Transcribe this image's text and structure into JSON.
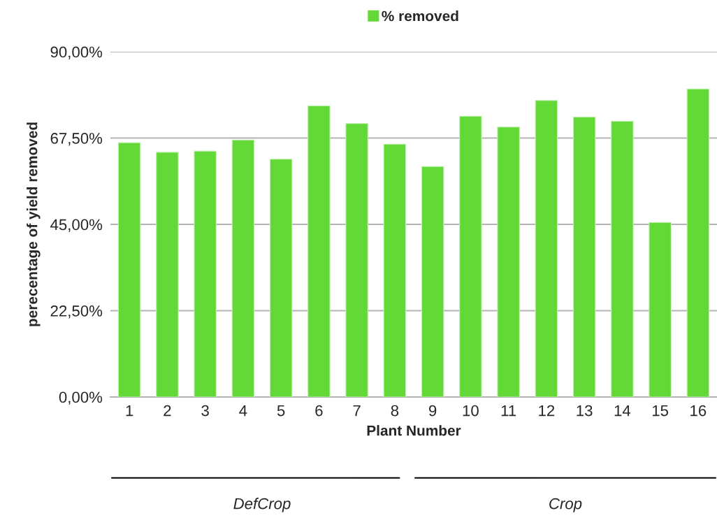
{
  "chart_data": {
    "type": "bar",
    "xlabel": "Plant Number",
    "ylabel": "perecentage of yield removed",
    "categories": [
      "1",
      "2",
      "3",
      "4",
      "5",
      "6",
      "7",
      "8",
      "9",
      "10",
      "11",
      "12",
      "13",
      "14",
      "15",
      "16"
    ],
    "series": [
      {
        "name": "% removed",
        "color": "#62d936",
        "values": [
          66.3,
          63.8,
          64.1,
          67.0,
          62.0,
          75.9,
          71.3,
          65.9,
          60.1,
          73.2,
          70.4,
          77.3,
          73.0,
          71.9,
          45.5,
          80.3
        ]
      }
    ],
    "ylim": [
      0,
      90
    ],
    "yticks": [
      {
        "value": 0,
        "label": "0,00%"
      },
      {
        "value": 22.5,
        "label": "22,50%"
      },
      {
        "value": 45,
        "label": "45,00%"
      },
      {
        "value": 67.5,
        "label": "67,50%"
      },
      {
        "value": 90,
        "label": "90,00%"
      }
    ],
    "grid": "y",
    "legend": "top",
    "annotations": [
      "DefCrop",
      "Crop"
    ]
  }
}
